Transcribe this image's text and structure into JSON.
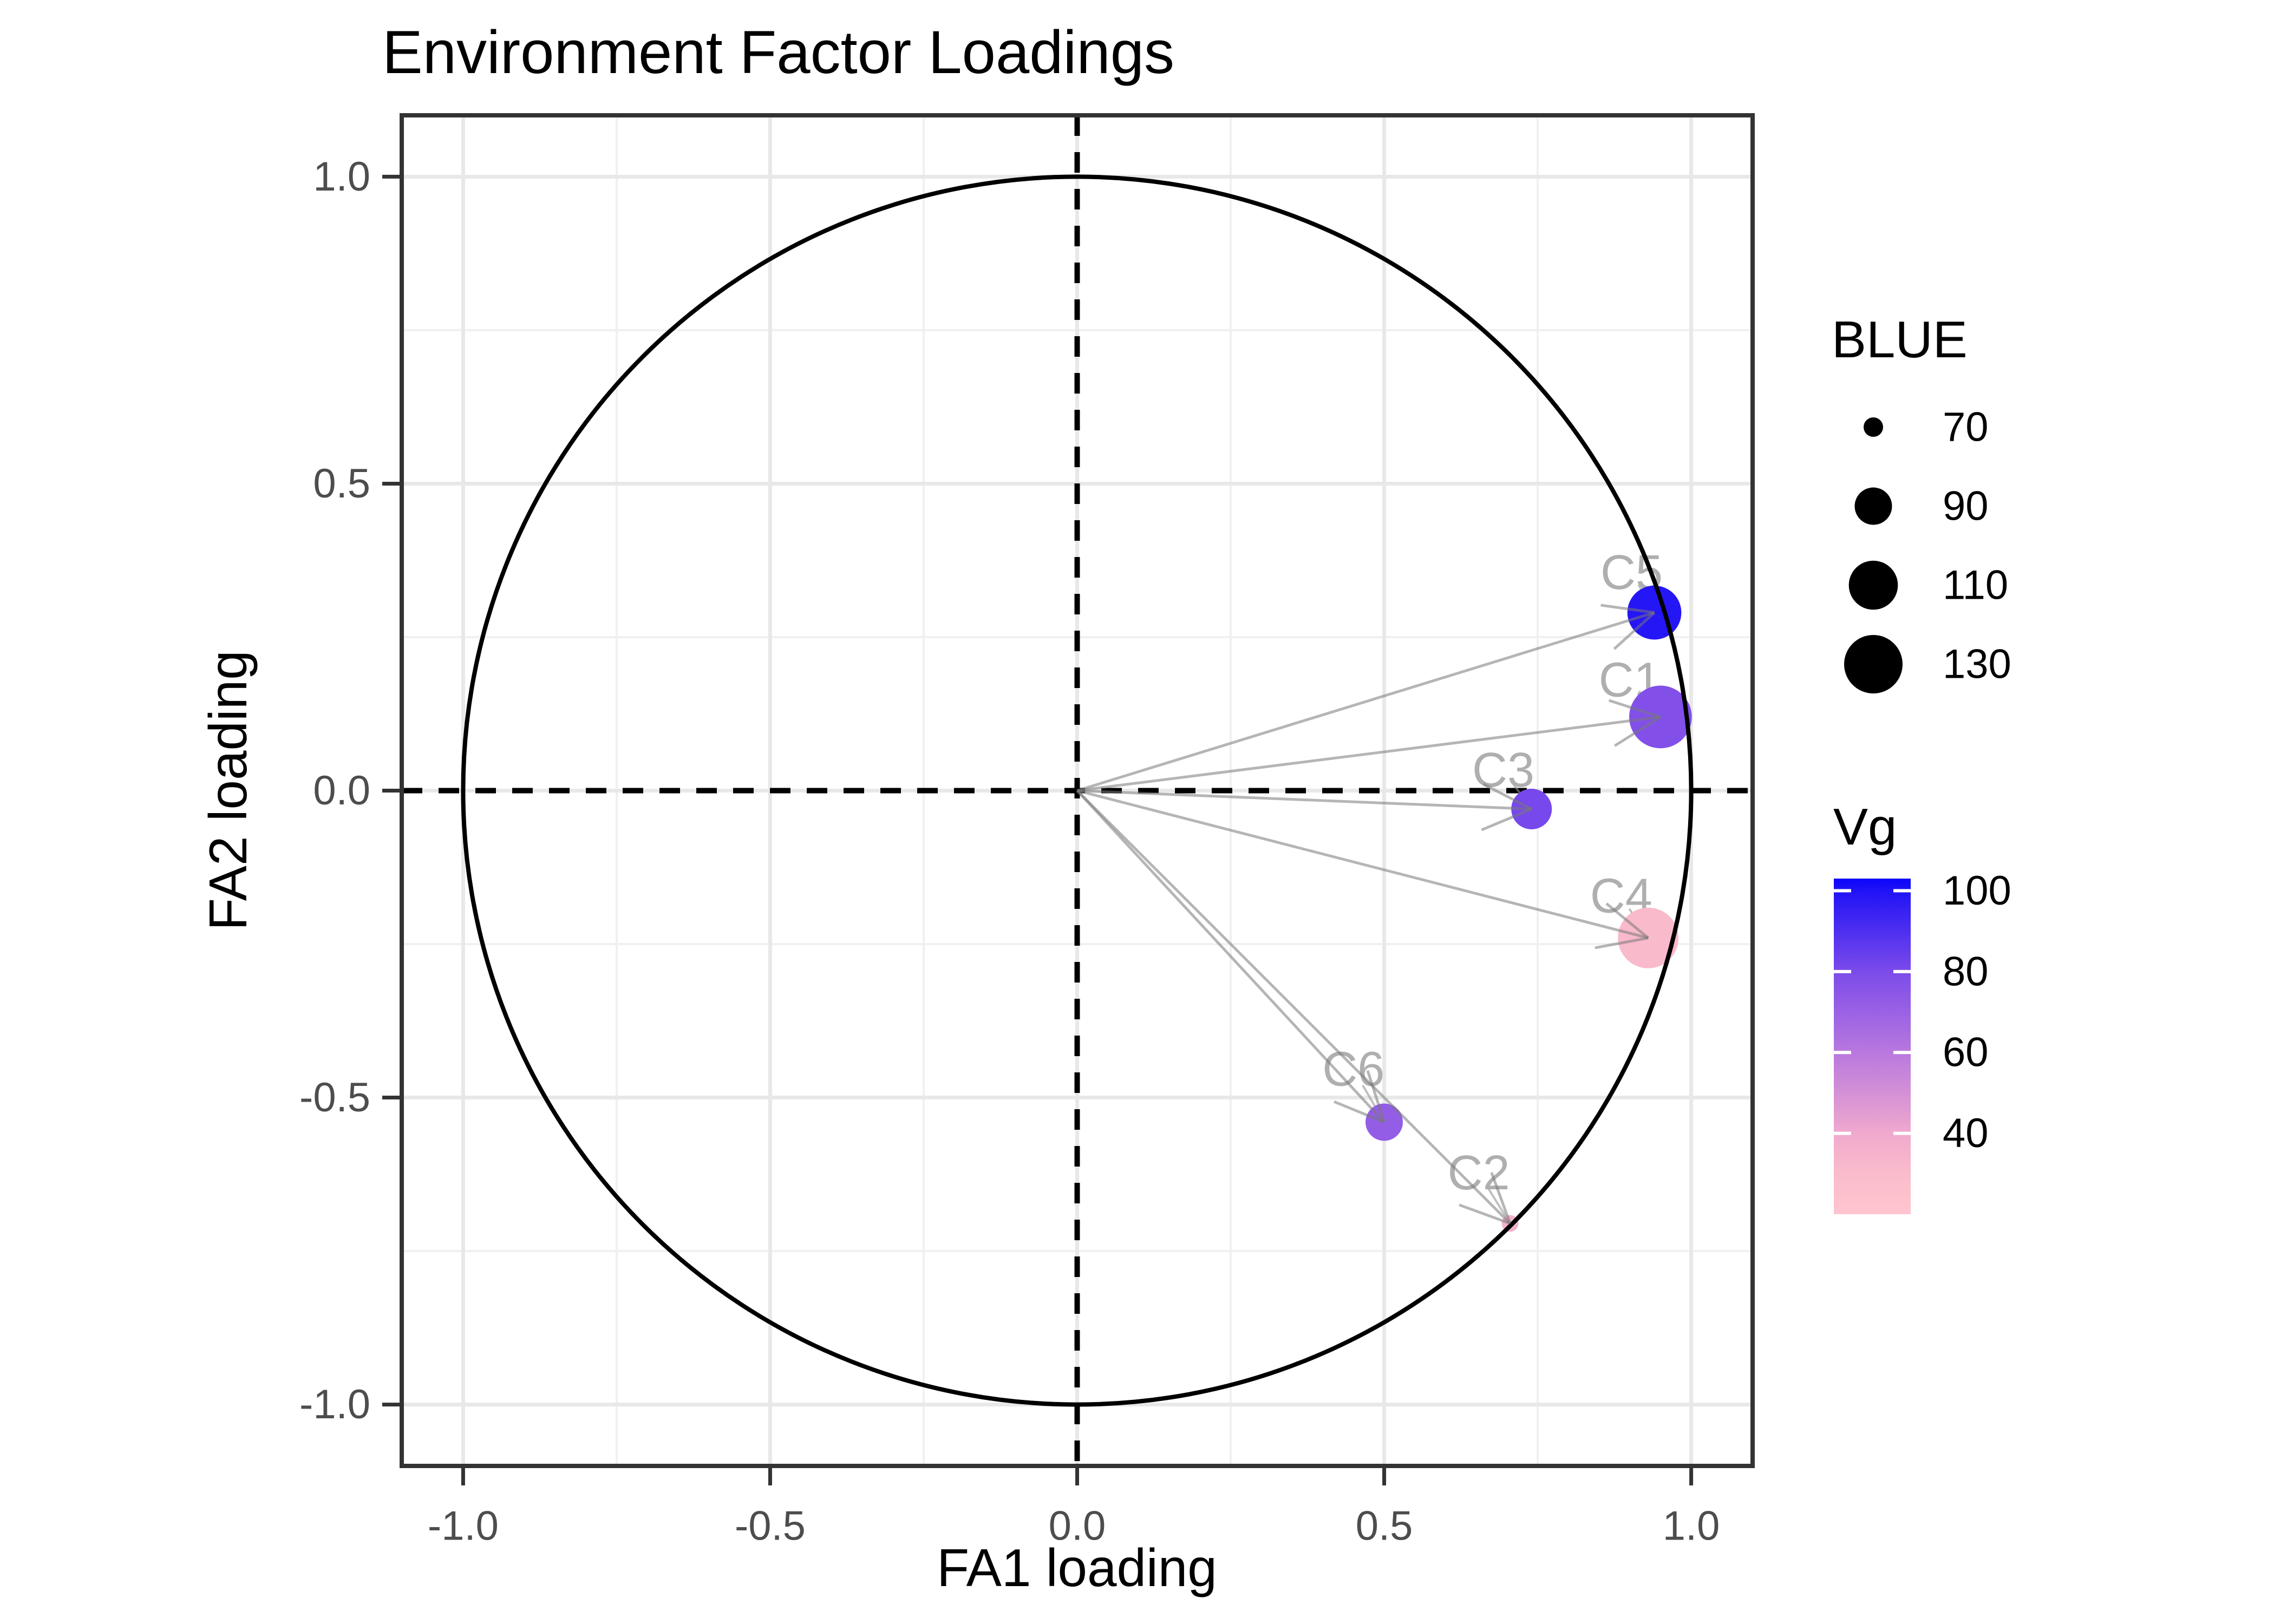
{
  "title": "Environment Factor Loadings",
  "chart_data": {
    "type": "scatter",
    "title": "Environment Factor Loadings",
    "xlabel": "FA1 loading",
    "ylabel": "FA2 loading",
    "xlim": [
      -1.1,
      1.1
    ],
    "ylim": [
      -1.1,
      1.1
    ],
    "grid": true,
    "unit_circle": true,
    "zero_lines_dashed": true,
    "legend_position": "right",
    "x_ticks": {
      "values": [
        -1,
        -0.5,
        0,
        0.5,
        1
      ],
      "labels": [
        "-1.0",
        "-0.5",
        "0.0",
        "0.5",
        "1.0"
      ]
    },
    "y_ticks": {
      "values": [
        -1,
        -0.5,
        0,
        0.5,
        1
      ],
      "labels": [
        "-1.0",
        "-0.5",
        "0.0",
        "0.5",
        "1.0"
      ]
    },
    "minor_ticks": [
      -0.75,
      -0.25,
      0.25,
      0.75
    ],
    "size_legend": {
      "title": "BLUE",
      "breaks": [
        70,
        90,
        110,
        130
      ]
    },
    "color_legend": {
      "title": "Vg",
      "breaks": [
        100,
        80,
        60,
        40
      ],
      "bar_domain": [
        20,
        103
      ]
    },
    "color_stops": [
      [
        20,
        "#FFC5CF"
      ],
      [
        30,
        "#FABCCB"
      ],
      [
        40,
        "#F0A9CE"
      ],
      [
        60,
        "#B878DE"
      ],
      [
        80,
        "#7C4BEA"
      ],
      [
        100,
        "#2013F6"
      ],
      [
        103,
        "#0C04FB"
      ]
    ],
    "size_scale": {
      "values": [
        70,
        130
      ],
      "radius_px": [
        18,
        54
      ]
    },
    "points": [
      {
        "env": "C1",
        "fa1": 0.95,
        "fa2": 0.12,
        "blue": 140,
        "vg": 78,
        "label_at": [
          0.9,
          0.18
        ]
      },
      {
        "env": "C2",
        "fa1": 0.705,
        "fa2": -0.705,
        "blue": 68,
        "vg": 36,
        "label_at": [
          0.654,
          -0.623
        ]
      },
      {
        "env": "C3",
        "fa1": 0.74,
        "fa2": -0.03,
        "blue": 95,
        "vg": 81,
        "label_at": [
          0.694,
          0.033
        ]
      },
      {
        "env": "C4",
        "fa1": 0.93,
        "fa2": -0.24,
        "blue": 135,
        "vg": 31,
        "label_at": [
          0.886,
          -0.172
        ]
      },
      {
        "env": "C5",
        "fa1": 0.94,
        "fa2": 0.29,
        "blue": 120,
        "vg": 99,
        "label_at": [
          0.903,
          0.355
        ]
      },
      {
        "env": "C6",
        "fa1": 0.5,
        "fa2": -0.54,
        "blue": 90,
        "vg": 72,
        "label_at": [
          0.45,
          -0.454
        ]
      }
    ],
    "arrows_from_origin": true
  }
}
